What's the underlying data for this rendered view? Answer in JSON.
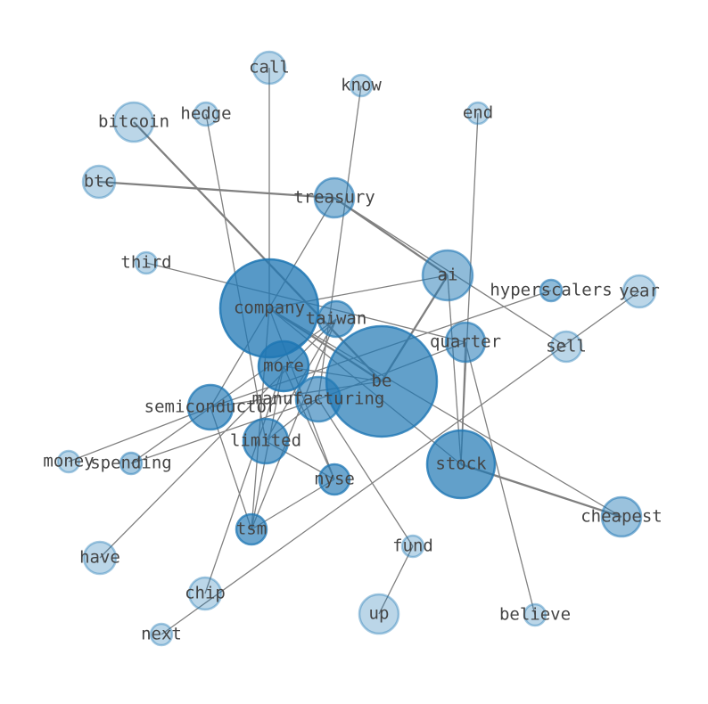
{
  "nodes": [
    {
      "label": "call"
    },
    {
      "label": "know"
    },
    {
      "label": "bitcoin"
    },
    {
      "label": "hedge"
    },
    {
      "label": "end"
    },
    {
      "label": "btc"
    },
    {
      "label": "treasury"
    },
    {
      "label": "third"
    },
    {
      "label": "ai"
    },
    {
      "label": "hyperscalers"
    },
    {
      "label": "year"
    },
    {
      "label": "company"
    },
    {
      "label": "taiwan"
    },
    {
      "label": "quarter"
    },
    {
      "label": "sell"
    },
    {
      "label": "more"
    },
    {
      "label": "be"
    },
    {
      "label": "manufacturing"
    },
    {
      "label": "semiconductor"
    },
    {
      "label": "limited"
    },
    {
      "label": "money"
    },
    {
      "label": "spending"
    },
    {
      "label": "stock"
    },
    {
      "label": "nyse"
    },
    {
      "label": "tsm"
    },
    {
      "label": "cheapest"
    },
    {
      "label": "fund"
    },
    {
      "label": "have"
    },
    {
      "label": "chip"
    },
    {
      "label": "up"
    },
    {
      "label": "believe"
    },
    {
      "label": "next"
    }
  ]
}
